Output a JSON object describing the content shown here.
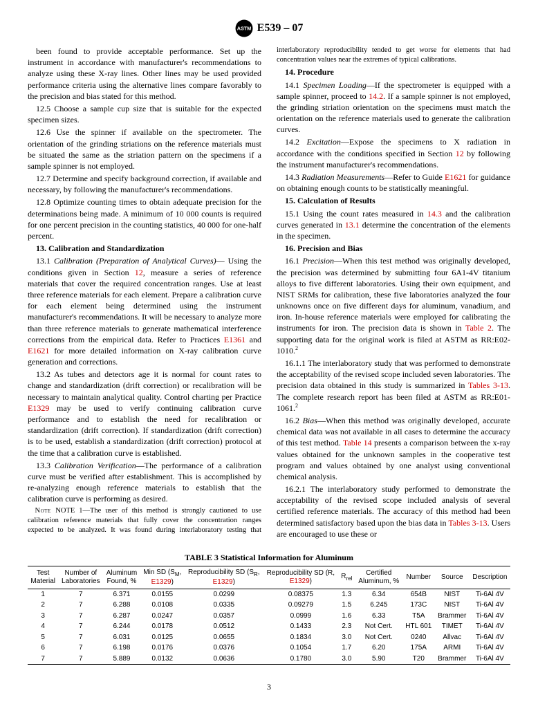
{
  "header": {
    "designation": "E539 – 07"
  },
  "col": {
    "p1": "been found to provide acceptable performance. Set up the instrument in accordance with manufacturer's recommendations to analyze using these X-ray lines. Other lines may be used provided performance criteria using the alternative lines compare favorably to the precision and bias stated for this method.",
    "p12_5": "12.5 Choose a sample cup size that is suitable for the expected specimen sizes.",
    "p12_6": "12.6 Use the spinner if available on the spectrometer. The orientation of the grinding striations on the reference materials must be situated the same as the striation pattern on the specimens if a sample spinner is not employed.",
    "p12_7": "12.7 Determine and specify background correction, if available and necessary, by following the manufacturer's recommendations.",
    "p12_8": "12.8 Optimize counting times to obtain adequate precision for the determinations being made. A minimum of 10 000 counts is required for one percent precision in the counting statistics, 40 000 for one-half percent.",
    "s13": "13. Calibration and Standardization",
    "p13_1a": "13.1 ",
    "p13_1i": "Calibration (Preparation of Analytical Curves)",
    "p13_1b": "— Using the conditions given in Section ",
    "l12": "12",
    "p13_1c": ", measure a series of reference materials that cover the required concentration ranges. Use at least three reference materials for each element. Prepare a calibration curve for each element being determined using the instrument manufacturer's recommendations. It will be necessary to analyze more than three reference materials to generate mathematical interference corrections from the empirical data. Refer to Practices ",
    "l1361": "E1361",
    "and": " and ",
    "l1621": "E1621",
    "p13_1d": " for more detailed information on X-ray calibration curve generation and corrections.",
    "p13_2a": "13.2 As tubes and detectors age it is normal for count rates to change and standardization (drift correction) or recalibration will be necessary to maintain analytical quality. Control charting per Practice ",
    "l1329": "E1329",
    "p13_2b": " may be used to verify continuing calibration curve performance and to establish the need for recalibration or standardization (drift correction). If standardization (drift correction) is to be used, establish a standardization (drift correction) protocol at the time that a calibration curve is established.",
    "p13_3a": "13.3 ",
    "p13_3i": "Calibration Verification",
    "p13_3b": "—The performance of a calibration curve must be verified after establishment. This is accomplished by re-analyzing enough reference materials to establish that the calibration curve is performing as desired.",
    "note1": "NOTE 1—The user of this method is strongly cautioned to use calibration reference materials that fully cover the concentration ranges expected to be analyzed. It was found during interlaboratory testing that interlaboratory reproducibility tended to get worse for elements that had concentration values near the extremes of typical calibrations.",
    "s14": "14. Procedure",
    "p14_1a": "14.1 ",
    "p14_1i": "Specimen Loading",
    "p14_1b": "—If the spectrometer is equipped with a sample spinner, proceed to ",
    "l14_2": "14.2",
    "p14_1c": ". If a sample spinner is not employed, the grinding striation orientation on the specimens must match the orientation on the reference materials used to generate the calibration curves.",
    "p14_2a": "14.2 ",
    "p14_2i": "Excitation",
    "p14_2b": "—Expose the specimens to X radiation in accordance with the conditions specified in Section ",
    "p14_2c": " by following the instrument manufacturer's recommendations.",
    "p14_3a": "14.3 ",
    "p14_3i": "Radiation Measurements",
    "p14_3b": "—Refer to Guide ",
    "p14_3c": " for guidance on obtaining enough counts to be statistically meaningful.",
    "s15": "15. Calculation of Results",
    "p15_1a": "15.1 Using the count rates measured in ",
    "l14_3": "14.3",
    "p15_1b": " and the calibration curves generated in ",
    "l13_1": "13.1",
    "p15_1c": " determine the concentration of the elements in the specimen.",
    "s16": "16. Precision and Bias",
    "p16_1a": "16.1 ",
    "p16_1i": "Precision",
    "p16_1b": "—When this test method was originally developed, the precision was determined by submitting four 6A1-4V titanium alloys to five different laboratories. Using their own equipment, and NIST SRMs for calibration, these five laboratories analyzed the four unknowns once on five different days for aluminum, vanadium, and iron. In-house reference materials were employed for calibrating the instruments for iron. The precision data is shown in ",
    "lT2": "Table 2",
    "p16_1c": ". The supporting data for the original work is filed at ASTM as RR:E02-1010.",
    "fn2": "2",
    "p16_1_1a": "16.1.1 The interlaboratory study that was performed to demonstrate the acceptability of the revised scope included seven laboratories. The precision data obtained in this study is summarized in ",
    "lT313": "Tables 3-13",
    "p16_1_1b": ". The complete research report has been filed at ASTM as RR:E01-1061.",
    "p16_2a": "16.2 ",
    "p16_2i": "Bias",
    "p16_2b": "—When this method was originally developed, accurate chemical data was not available in all cases to determine the accuracy of this test method. ",
    "lT14": "Table 14",
    "p16_2c": " presents a comparison between the x-ray values obtained for the unknown samples in the cooperative test program and values obtained by one analyst using conventional chemical analysis.",
    "p16_2_1a": "16.2.1 The interlaboratory study performed to demonstrate the acceptability of the revised scope included analysis of several certified reference materials. The accuracy of this method had been determined satisfactory based upon the bias data in ",
    "p16_2_1b": ". Users are encouraged to use these or"
  },
  "table": {
    "title": "TABLE 3  Statistical Information for Aluminum",
    "headers": [
      "Test\nMaterial",
      "Number of\nLaboratories",
      "Aluminum\nFound, %",
      "Min SD (S",
      "Reproducibility SD (S",
      "Reproducibility SD (R,",
      "R",
      "Certified\nAluminum, %",
      "Number",
      "Source",
      "Description"
    ],
    "hsub": [
      "",
      "",
      "",
      "M,\nE1329",
      ")",
      "R,\nE1329",
      ")",
      "E1329",
      ")",
      "rel",
      "",
      "",
      "",
      ""
    ],
    "rows": [
      [
        "1",
        "7",
        "6.371",
        "0.0155",
        "0.0299",
        "0.08375",
        "1.3",
        "6.34",
        "654B",
        "NIST",
        "Ti-6Al 4V"
      ],
      [
        "2",
        "7",
        "6.288",
        "0.0108",
        "0.0335",
        "0.09279",
        "1.5",
        "6.245",
        "173C",
        "NIST",
        "Ti-6Al 4V"
      ],
      [
        "3",
        "7",
        "6.287",
        "0.0247",
        "0.0357",
        "0.0999",
        "1.6",
        "6.33",
        "T5A",
        "Brammer",
        "Ti-6Al 4V"
      ],
      [
        "4",
        "7",
        "6.244",
        "0.0178",
        "0.0512",
        "0.1433",
        "2.3",
        "Not Cert.",
        "HTL 601",
        "TIMET",
        "Ti-6Al 4V"
      ],
      [
        "5",
        "7",
        "6.031",
        "0.0125",
        "0.0655",
        "0.1834",
        "3.0",
        "Not Cert.",
        "0240",
        "Allvac",
        "Ti-6Al 4V"
      ],
      [
        "6",
        "7",
        "6.198",
        "0.0176",
        "0.0376",
        "0.1054",
        "1.7",
        "6.20",
        "175A",
        "ARMI",
        "Ti-6Al 4V"
      ],
      [
        "7",
        "7",
        "5.889",
        "0.0132",
        "0.0636",
        "0.1780",
        "3.0",
        "5.90",
        "T20",
        "Brammer",
        "Ti-6Al 4V"
      ]
    ]
  },
  "pagenum": "3"
}
